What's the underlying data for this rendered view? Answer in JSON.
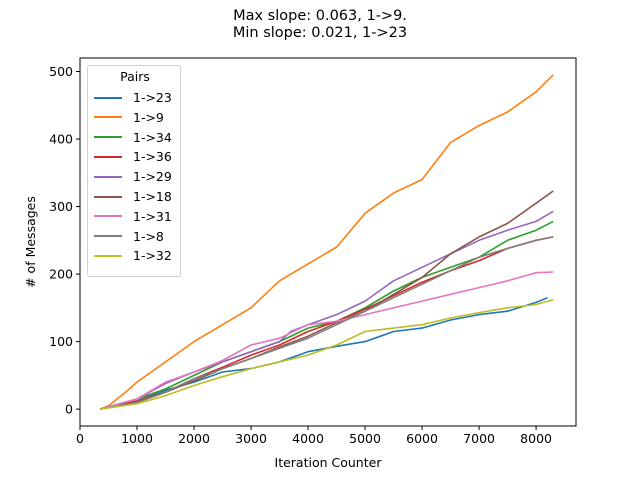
{
  "chart_data": {
    "type": "line",
    "title_line1": "Max slope: 0.063, 1->9.",
    "title_line2": "Min slope: 0.021, 1->23",
    "xlabel": "Iteration Counter",
    "ylabel": "# of Messages",
    "xlim": [
      0,
      8700
    ],
    "ylim": [
      -25,
      520
    ],
    "xticks": [
      0,
      1000,
      2000,
      3000,
      4000,
      5000,
      6000,
      7000,
      8000
    ],
    "yticks": [
      0,
      100,
      200,
      300,
      400,
      500
    ],
    "grid": false,
    "legend": {
      "title": "Pairs",
      "placement": "top-left"
    },
    "series": [
      {
        "name": "1->23",
        "color": "#1f77b4",
        "x": [
          350,
          1000,
          1500,
          2000,
          2500,
          3000,
          3500,
          4000,
          4500,
          5000,
          5500,
          6000,
          6500,
          7000,
          7500,
          8000,
          8200
        ],
        "y": [
          0,
          12,
          28,
          40,
          55,
          60,
          70,
          85,
          93,
          100,
          115,
          120,
          132,
          140,
          145,
          158,
          165
        ]
      },
      {
        "name": "1->9",
        "color": "#ff7f0e",
        "x": [
          350,
          500,
          800,
          1000,
          1500,
          2000,
          2500,
          3000,
          3500,
          4000,
          4500,
          5000,
          5500,
          6000,
          6500,
          7000,
          7500,
          8000,
          8300
        ],
        "y": [
          0,
          5,
          25,
          40,
          70,
          100,
          125,
          150,
          190,
          215,
          240,
          290,
          320,
          340,
          395,
          420,
          440,
          470,
          495
        ]
      },
      {
        "name": "1->34",
        "color": "#2ca02c",
        "x": [
          350,
          1000,
          1500,
          2000,
          2500,
          3000,
          3500,
          4000,
          4500,
          5000,
          5500,
          6000,
          6500,
          7000,
          7500,
          8000,
          8300
        ],
        "y": [
          0,
          15,
          30,
          50,
          70,
          85,
          100,
          120,
          130,
          150,
          175,
          195,
          210,
          225,
          250,
          265,
          278
        ]
      },
      {
        "name": "1->36",
        "color": "#d62728",
        "x": [
          350,
          1000,
          1500,
          2000,
          2500,
          3000,
          3500,
          4000,
          4500,
          5000,
          5500,
          6000,
          6500,
          7000,
          7500,
          8000,
          8300
        ],
        "y": [
          0,
          12,
          25,
          45,
          62,
          80,
          95,
          115,
          130,
          148,
          168,
          188,
          205,
          220,
          238,
          250,
          255
        ]
      },
      {
        "name": "1->29",
        "color": "#9467bd",
        "x": [
          350,
          1000,
          1500,
          2000,
          2500,
          3000,
          3500,
          3700,
          4000,
          4500,
          5000,
          5500,
          6000,
          6500,
          7000,
          7500,
          8000,
          8300
        ],
        "y": [
          0,
          15,
          38,
          55,
          70,
          85,
          100,
          115,
          125,
          140,
          160,
          190,
          210,
          230,
          250,
          265,
          278,
          293
        ]
      },
      {
        "name": "1->18",
        "color": "#8c564b",
        "x": [
          350,
          1000,
          1500,
          2000,
          2500,
          3000,
          3500,
          4000,
          4500,
          5000,
          5500,
          6000,
          6500,
          7000,
          7500,
          8000,
          8300
        ],
        "y": [
          0,
          10,
          25,
          42,
          60,
          75,
          92,
          108,
          128,
          145,
          170,
          195,
          230,
          255,
          275,
          305,
          323
        ]
      },
      {
        "name": "1->31",
        "color": "#e377c2",
        "x": [
          350,
          1000,
          1500,
          2000,
          2500,
          3000,
          3500,
          4000,
          4500,
          5000,
          5500,
          6000,
          6500,
          7000,
          7500,
          8000,
          8300
        ],
        "y": [
          0,
          15,
          40,
          55,
          72,
          95,
          105,
          125,
          130,
          140,
          150,
          160,
          170,
          180,
          190,
          202,
          203
        ]
      },
      {
        "name": "1->8",
        "color": "#7f7f7f",
        "x": [
          350,
          1000,
          1500,
          2000,
          2500,
          3000,
          3500,
          4000,
          4500,
          5000,
          5500,
          6000,
          6500,
          7000,
          7500,
          8000,
          8300
        ],
        "y": [
          0,
          10,
          25,
          45,
          60,
          75,
          90,
          105,
          125,
          145,
          165,
          185,
          205,
          225,
          238,
          250,
          255
        ]
      },
      {
        "name": "1->32",
        "color": "#bcbd22",
        "x": [
          350,
          1000,
          1500,
          2000,
          2500,
          3000,
          3500,
          4000,
          4500,
          5000,
          5500,
          6000,
          6500,
          7000,
          7500,
          8000,
          8300
        ],
        "y": [
          0,
          8,
          20,
          35,
          48,
          60,
          70,
          80,
          95,
          115,
          120,
          125,
          135,
          143,
          150,
          155,
          162
        ]
      }
    ]
  }
}
